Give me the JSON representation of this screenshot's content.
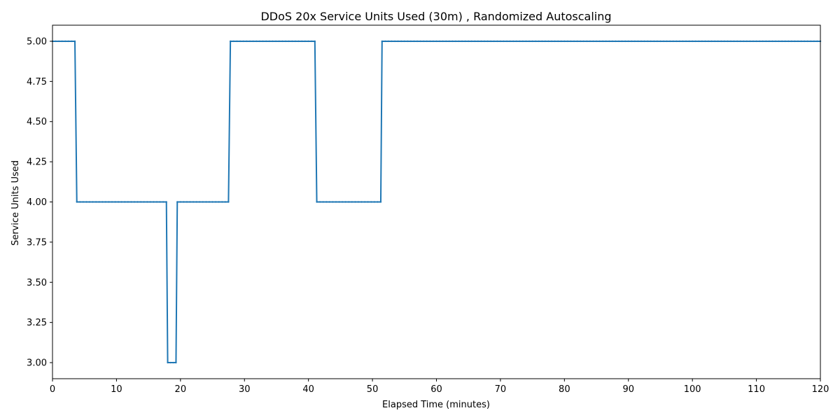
{
  "chart_data": {
    "type": "line",
    "title": "DDoS 20x Service Units Used (30m) , Randomized Autoscaling",
    "xlabel": "Elapsed Time (minutes)",
    "ylabel": "Service Units Used",
    "xlim": [
      0,
      120
    ],
    "ylim": [
      2.9,
      5.1
    ],
    "xticks": [
      0,
      10,
      20,
      30,
      40,
      50,
      60,
      70,
      80,
      90,
      100,
      110,
      120
    ],
    "yticks": [
      "3.00",
      "3.25",
      "3.50",
      "3.75",
      "4.00",
      "4.25",
      "4.50",
      "4.75",
      "5.00"
    ],
    "grid": false,
    "color": "#1f77b4",
    "series": [
      {
        "step_points": [
          [
            0,
            5
          ],
          [
            3.5,
            5
          ],
          [
            3.8,
            4
          ],
          [
            17.8,
            4
          ],
          [
            18.0,
            3
          ],
          [
            19.3,
            3
          ],
          [
            19.5,
            4
          ],
          [
            27.5,
            4
          ],
          [
            27.8,
            5
          ],
          [
            41.0,
            5
          ],
          [
            41.3,
            4
          ],
          [
            51.3,
            4
          ],
          [
            51.5,
            5
          ],
          [
            120,
            5
          ]
        ]
      }
    ]
  }
}
